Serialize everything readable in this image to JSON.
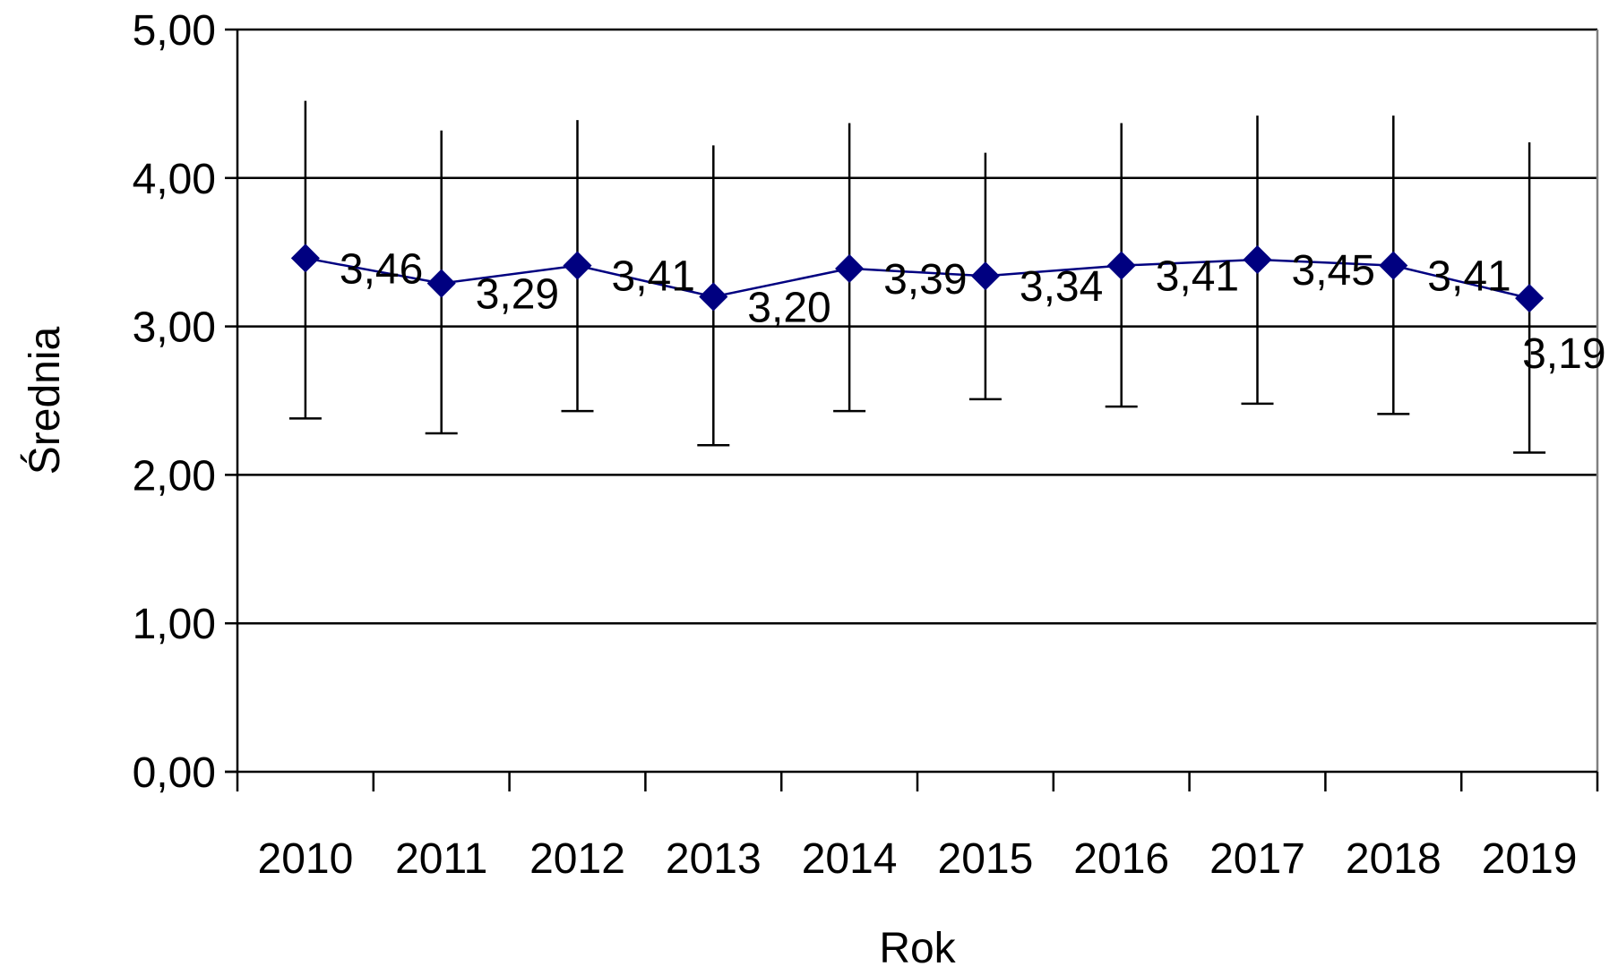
{
  "chart_data": {
    "type": "line",
    "title": "",
    "xlabel": "Rok",
    "ylabel": "Średnia",
    "categories": [
      "2010",
      "2011",
      "2012",
      "2013",
      "2014",
      "2015",
      "2016",
      "2017",
      "2018",
      "2019"
    ],
    "ylim": [
      0,
      5
    ],
    "yticks": [
      "0,00",
      "1,00",
      "2,00",
      "3,00",
      "4,00",
      "5,00"
    ],
    "grid": true,
    "legend": "none",
    "series": [
      {
        "values": [
          3.46,
          3.29,
          3.41,
          3.2,
          3.39,
          3.34,
          3.41,
          3.45,
          3.41,
          3.19
        ],
        "labels": [
          "3,46",
          "3,29",
          "3,41",
          "3,20",
          "3,39",
          "3,34",
          "3,41",
          "3,45",
          "3,41",
          "3,19"
        ],
        "error_upper": [
          4.52,
          4.32,
          4.39,
          4.22,
          4.37,
          4.17,
          4.37,
          4.42,
          4.42,
          4.24
        ],
        "error_lower": [
          2.38,
          2.28,
          2.43,
          2.2,
          2.43,
          2.51,
          2.46,
          2.48,
          2.41,
          2.15
        ],
        "color": "#000080",
        "marker": "diamond"
      }
    ],
    "colors": {
      "series": "#000080",
      "grid": "#000000",
      "axis": "#000000",
      "error_bar": "#000000",
      "plot_border": "#808080"
    }
  }
}
